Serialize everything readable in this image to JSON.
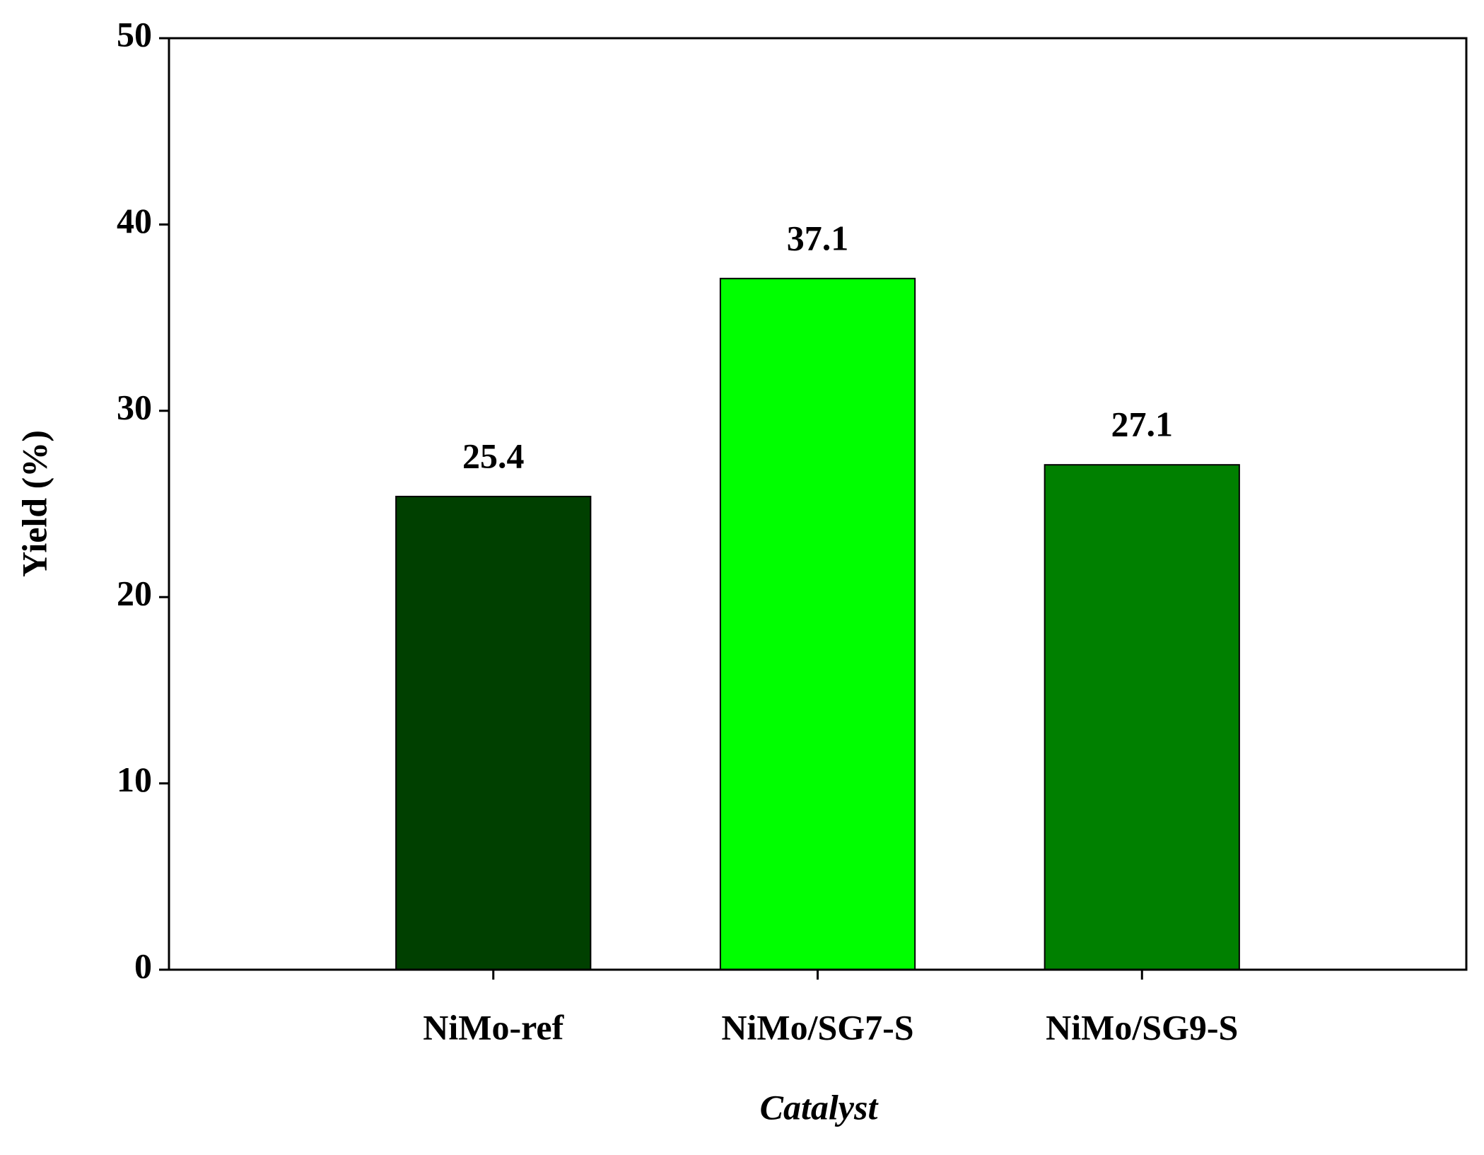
{
  "chart_data": {
    "type": "bar",
    "categories": [
      "NiMo-ref",
      "NiMo/SG7-S",
      "NiMo/SG9-S"
    ],
    "values": [
      25.4,
      37.1,
      27.1
    ],
    "colors": [
      "#004000",
      "#00ff00",
      "#008000"
    ],
    "xlabel": "Catalyst",
    "ylabel": "Yield (%)",
    "ylim": [
      0,
      50
    ],
    "yticks": [
      0,
      10,
      20,
      30,
      40,
      50
    ],
    "grid": false
  }
}
